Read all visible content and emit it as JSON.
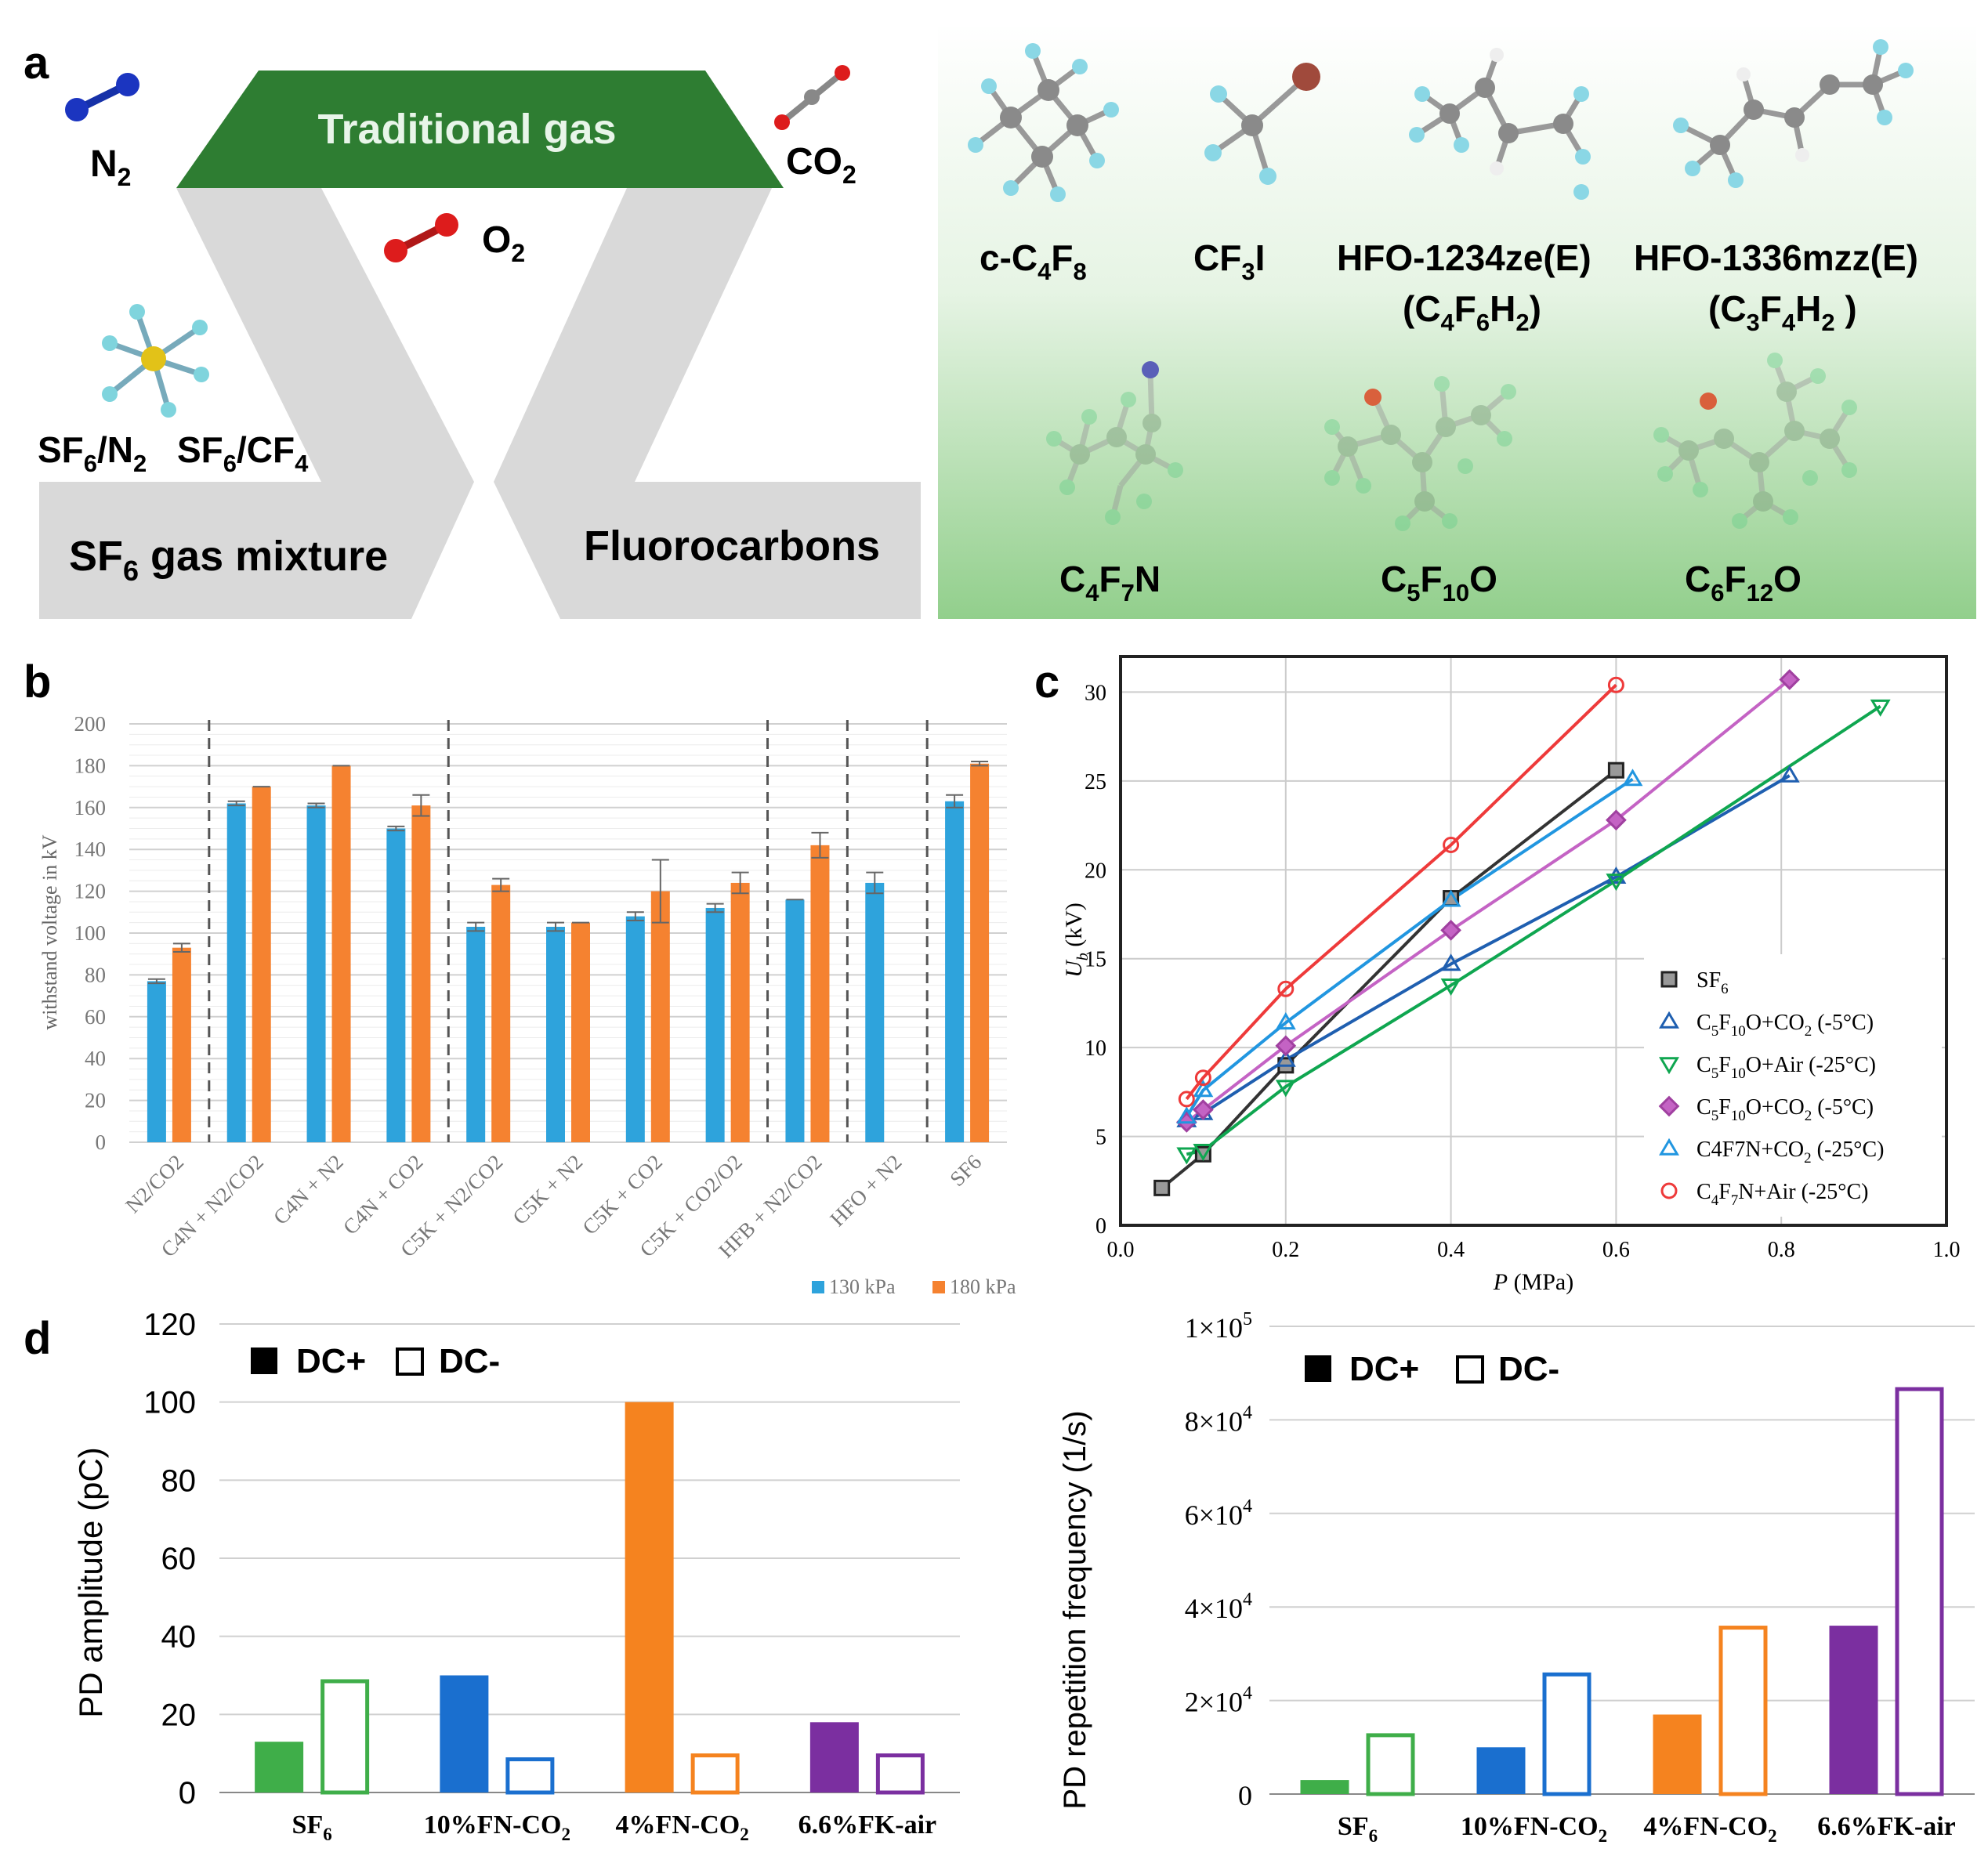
{
  "panel_labels": {
    "a": "a",
    "b": "b",
    "c": "c",
    "d": "d"
  },
  "colors": {
    "trad_green": "#2e7d32",
    "gray_band": "#d9d9d9",
    "c130": "#2ea3dc",
    "c180": "#f58230",
    "sf6": "#333333",
    "c5_co2_5": "#1f5fb0",
    "c5_air": "#0fa650",
    "c5_co2_pink": "#c463c4",
    "c4_co2": "#2196e0",
    "c4_air": "#ee3a3a",
    "d_sf6": "#3fae49",
    "d_10fn": "#1a6fcf",
    "d_4fn": "#f5831f",
    "d_fk": "#7b2fa0"
  },
  "panel_a": {
    "trad_label": "Traditional gas",
    "n2": {
      "main": "N",
      "sub": "2"
    },
    "o2": {
      "main": "O",
      "sub": "2"
    },
    "co2": {
      "main": "CO",
      "sub": "2"
    },
    "sf6n2": {
      "p1": "SF",
      "s1": "6",
      "p2": "/N",
      "s2": "2"
    },
    "sf6cf4": {
      "p1": "SF",
      "s1": "6",
      "p2": "/CF",
      "s2": "4"
    },
    "sf6_mixture": {
      "p1": "SF",
      "s1": "6",
      "p2": " gas mixture"
    },
    "fluorocarbons": "Fluorocarbons",
    "molecules": {
      "c4f8": {
        "a": "c-C",
        "b": "4",
        "c": "F",
        "d": "8"
      },
      "cf3i": {
        "a": "CF",
        "b": "3",
        "c": "I"
      },
      "hfo1234_name": "HFO-1234ze(E)",
      "hfo1234_formula": {
        "a": "(C",
        "b": "4",
        "c": "F",
        "d": "6",
        "e": "H",
        "f": "2",
        "g": ")"
      },
      "hfo1336_name": "HFO-1336mzz(E)",
      "hfo1336_formula": {
        "a": "(C",
        "b": "3",
        "c": "F",
        "d": "4",
        "e": "H",
        "f": "2",
        "g": " )"
      },
      "c4f7n": {
        "a": "C",
        "b": "4",
        "c": "F",
        "d": "7",
        "e": "N"
      },
      "c5f10o": {
        "a": "C",
        "b": "5",
        "c": "F",
        "d": "10",
        "e": "O"
      },
      "c6f12o": {
        "a": "C",
        "b": "6",
        "c": "F",
        "d": "12",
        "e": "O"
      }
    }
  },
  "chart_data": [
    {
      "id": "b",
      "type": "bar",
      "ylabel": "withstand voltage in kV",
      "ylim": [
        0,
        200
      ],
      "yticks": [
        0,
        20,
        40,
        60,
        80,
        100,
        120,
        140,
        160,
        180,
        200
      ],
      "categories": [
        "N2/CO2",
        "C4N + N2/CO2",
        "C4N + N2",
        "C4N + CO2",
        "C5K + N2/CO2",
        "C5K + N2",
        "C5K + CO2",
        "C5K + CO2/O2",
        "HFB + N2/CO2",
        "HFO + N2",
        "SF6"
      ],
      "series": [
        {
          "name": "130 kPa",
          "values": [
            77,
            162,
            161,
            150,
            103,
            103,
            108,
            112,
            116,
            124,
            163
          ],
          "errors": [
            1,
            1,
            1,
            1,
            2,
            2,
            2,
            2,
            0,
            5,
            3
          ]
        },
        {
          "name": "180 kPa",
          "values": [
            93,
            170,
            180,
            161,
            123,
            105,
            120,
            124,
            142,
            null,
            181
          ],
          "errors": [
            2,
            0,
            0,
            5,
            3,
            0,
            15,
            5,
            6,
            null,
            1
          ]
        }
      ],
      "group_separators_after_index": [
        0,
        3,
        7,
        8,
        9
      ]
    },
    {
      "id": "c",
      "type": "line",
      "xlabel": "P (MPa)",
      "ylabel": "U_b (kV)",
      "xlim": [
        0.0,
        1.0
      ],
      "ylim": [
        0,
        32
      ],
      "xticks": [
        "0.0",
        "0.2",
        "0.4",
        "0.6",
        "0.8",
        "1.0"
      ],
      "yticks": [
        "0",
        "5",
        "10",
        "15",
        "20",
        "25",
        "30"
      ],
      "series": [
        {
          "name": "SF6",
          "label": {
            "a": "SF",
            "b": "6",
            "c": ""
          },
          "marker": "square",
          "color": "#333333",
          "points": [
            [
              0.05,
              2.1
            ],
            [
              0.1,
              4.0
            ],
            [
              0.2,
              9.0
            ],
            [
              0.4,
              18.4
            ],
            [
              0.6,
              25.6
            ]
          ]
        },
        {
          "name": "C5F10O+CO2 (-5°C)",
          "label": {
            "a": "C",
            "b": "5",
            "c": "F",
            "d": "10",
            "e": "O+CO",
            "f": "2",
            "g": " (-5°C)"
          },
          "marker": "triangle-up",
          "color": "#1f5fb0",
          "points": [
            [
              0.08,
              5.9
            ],
            [
              0.1,
              6.3
            ],
            [
              0.2,
              9.3
            ],
            [
              0.4,
              14.7
            ],
            [
              0.6,
              19.6
            ],
            [
              0.81,
              25.3
            ]
          ]
        },
        {
          "name": "C5F10O+Air (-25°C)",
          "label": {
            "a": "C",
            "b": "5",
            "c": "F",
            "d": "10",
            "e": "O+Air (-25°C)",
            "f": "",
            "g": ""
          },
          "marker": "triangle-down",
          "color": "#0fa650",
          "points": [
            [
              0.08,
              4.0
            ],
            [
              0.1,
              4.2
            ],
            [
              0.2,
              7.8
            ],
            [
              0.4,
              13.5
            ],
            [
              0.6,
              19.4
            ],
            [
              0.92,
              29.2
            ]
          ]
        },
        {
          "name": "C5F10O+CO2 (-5°C)",
          "label": {
            "a": "C",
            "b": "5",
            "c": "F",
            "d": "10",
            "e": "O+CO",
            "f": "2",
            "g": " (-5°C)"
          },
          "marker": "diamond",
          "color": "#c463c4",
          "points": [
            [
              0.08,
              5.8
            ],
            [
              0.1,
              6.5
            ],
            [
              0.2,
              10.1
            ],
            [
              0.4,
              16.6
            ],
            [
              0.6,
              22.8
            ],
            [
              0.81,
              30.7
            ]
          ]
        },
        {
          "name": "C4F7N+CO2 (-25°C)",
          "label": {
            "a": "C4F7N+CO",
            "b": "2",
            "c": " (-25°C)"
          },
          "marker": "triangle-up",
          "color": "#2196e0",
          "points": [
            [
              0.08,
              6.1
            ],
            [
              0.1,
              7.6
            ],
            [
              0.2,
              11.4
            ],
            [
              0.4,
              18.3
            ],
            [
              0.62,
              25.1
            ]
          ]
        },
        {
          "name": "C4F7N+Air (-25°C)",
          "label": {
            "a": "C",
            "b": "4",
            "c": "F",
            "d": "7",
            "e": "N+Air (-25°C)",
            "f": "",
            "g": ""
          },
          "marker": "circle",
          "color": "#ee3a3a",
          "points": [
            [
              0.08,
              7.1
            ],
            [
              0.1,
              8.3
            ],
            [
              0.2,
              13.3
            ],
            [
              0.4,
              21.4
            ],
            [
              0.6,
              30.4
            ]
          ]
        }
      ]
    },
    {
      "id": "d-amplitude",
      "type": "bar",
      "ylabel": "PD amplitude (pC)",
      "ylim": [
        0,
        120
      ],
      "yticks": [
        "0",
        "20",
        "40",
        "60",
        "80",
        "100",
        "120"
      ],
      "legend": {
        "plus": "DC+",
        "minus": "DC-"
      },
      "categories": [
        {
          "main": "SF",
          "sub": "6",
          "tail": ""
        },
        {
          "main": "10%FN-CO",
          "sub": "2",
          "tail": ""
        },
        {
          "main": "4%FN-CO",
          "sub": "2",
          "tail": ""
        },
        {
          "main": "6.6%FK-air",
          "sub": "",
          "tail": ""
        }
      ],
      "series": [
        {
          "name": "DC+",
          "filled": true,
          "values": [
            13,
            30,
            100,
            18
          ]
        },
        {
          "name": "DC-",
          "filled": false,
          "values": [
            29,
            9,
            10,
            10
          ]
        }
      ]
    },
    {
      "id": "d-frequency",
      "type": "bar",
      "ylabel": "PD repetition frequency (1/s)",
      "ylim": [
        0,
        100000
      ],
      "yticks": [
        {
          "base": "0",
          "exp": ""
        },
        {
          "base": "2×10",
          "exp": "4"
        },
        {
          "base": "4×10",
          "exp": "4"
        },
        {
          "base": "6×10",
          "exp": "4"
        },
        {
          "base": "8×10",
          "exp": "4"
        },
        {
          "base": "1×10",
          "exp": "5"
        }
      ],
      "legend": {
        "plus": "DC+",
        "minus": "DC-"
      },
      "categories": [
        {
          "main": "SF",
          "sub": "6",
          "tail": ""
        },
        {
          "main": "10%FN-CO",
          "sub": "2",
          "tail": ""
        },
        {
          "main": "4%FN-CO",
          "sub": "2",
          "tail": ""
        },
        {
          "main": "6.6%FK-air",
          "sub": "",
          "tail": ""
        }
      ],
      "series": [
        {
          "name": "DC+",
          "filled": true,
          "values": [
            3000,
            10000,
            17000,
            36000
          ]
        },
        {
          "name": "DC-",
          "filled": false,
          "values": [
            13000,
            26000,
            36000,
            87000
          ]
        }
      ]
    }
  ]
}
